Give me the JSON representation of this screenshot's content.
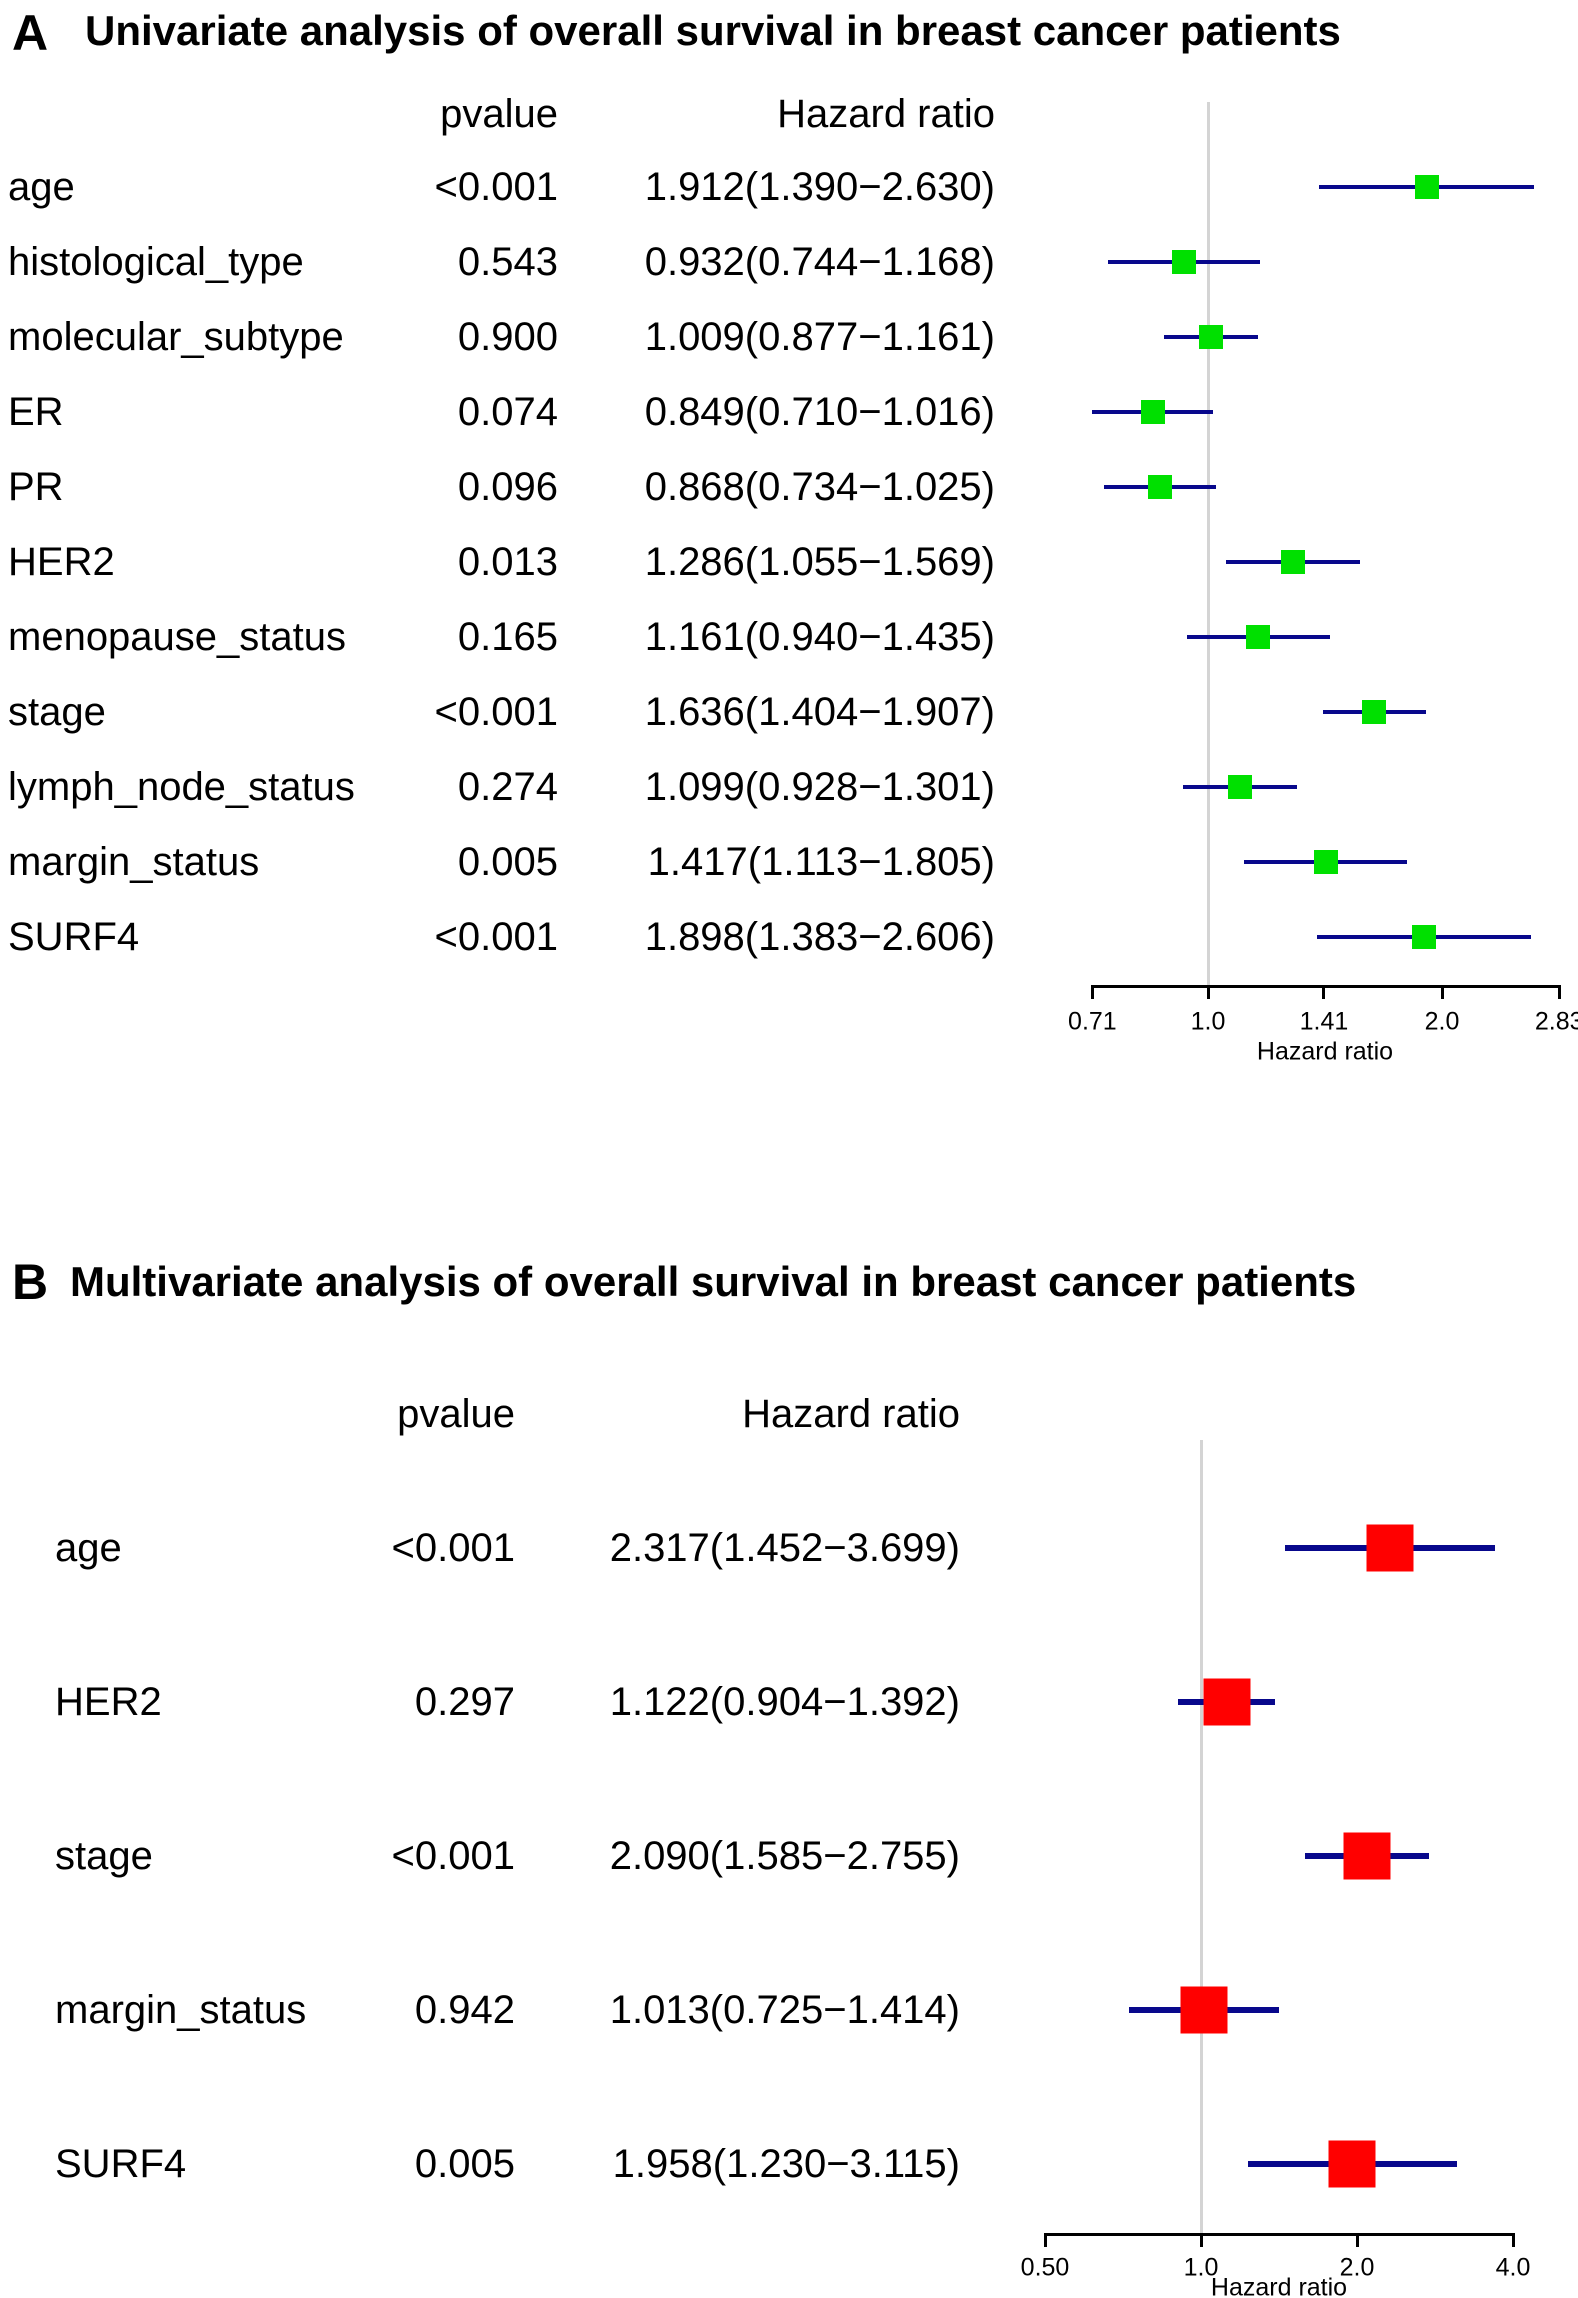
{
  "figure": {
    "background": "#ffffff",
    "ci_line_color": "#08088c",
    "reference_line_color": "#d4d4d4",
    "axis_color": "#000000"
  },
  "chart_data": [
    {
      "type": "scatter",
      "subtype": "forest-plot",
      "panel_letter": "A",
      "title": "Univariate analysis of overall survival in breast cancer patients",
      "col_pvalue_header": "pvalue",
      "col_hr_header": "Hazard ratio",
      "axis_label": "Hazard ratio",
      "axis_scale": "log2",
      "axis_range": [
        0.71,
        2.83
      ],
      "reference_value": 1.0,
      "marker_color": "#00e000",
      "marker_shape": "square",
      "ticks": [
        {
          "value": 0.71,
          "label": "0.71"
        },
        {
          "value": 1.0,
          "label": "1.0"
        },
        {
          "value": 1.41,
          "label": "1.41"
        },
        {
          "value": 2.0,
          "label": "2.0"
        },
        {
          "value": 2.83,
          "label": "2.83"
        }
      ],
      "rows": [
        {
          "label": "age",
          "pvalue": "<0.001",
          "hr_text": "1.912(1.390−2.630)",
          "hr": 1.912,
          "lo": 1.39,
          "hi": 2.63
        },
        {
          "label": "histological_type",
          "pvalue": "0.543",
          "hr_text": "0.932(0.744−1.168)",
          "hr": 0.932,
          "lo": 0.744,
          "hi": 1.168
        },
        {
          "label": "molecular_subtype",
          "pvalue": "0.900",
          "hr_text": "1.009(0.877−1.161)",
          "hr": 1.009,
          "lo": 0.877,
          "hi": 1.161
        },
        {
          "label": "ER",
          "pvalue": "0.074",
          "hr_text": "0.849(0.710−1.016)",
          "hr": 0.849,
          "lo": 0.71,
          "hi": 1.016
        },
        {
          "label": "PR",
          "pvalue": "0.096",
          "hr_text": "0.868(0.734−1.025)",
          "hr": 0.868,
          "lo": 0.734,
          "hi": 1.025
        },
        {
          "label": "HER2",
          "pvalue": "0.013",
          "hr_text": "1.286(1.055−1.569)",
          "hr": 1.286,
          "lo": 1.055,
          "hi": 1.569
        },
        {
          "label": "menopause_status",
          "pvalue": "0.165",
          "hr_text": "1.161(0.940−1.435)",
          "hr": 1.161,
          "lo": 0.94,
          "hi": 1.435
        },
        {
          "label": "stage",
          "pvalue": "<0.001",
          "hr_text": "1.636(1.404−1.907)",
          "hr": 1.636,
          "lo": 1.404,
          "hi": 1.907
        },
        {
          "label": "lymph_node_status",
          "pvalue": "0.274",
          "hr_text": "1.099(0.928−1.301)",
          "hr": 1.099,
          "lo": 0.928,
          "hi": 1.301
        },
        {
          "label": "margin_status",
          "pvalue": "0.005",
          "hr_text": "1.417(1.113−1.805)",
          "hr": 1.417,
          "lo": 1.113,
          "hi": 1.805
        },
        {
          "label": "SURF4",
          "pvalue": "<0.001",
          "hr_text": "1.898(1.383−2.606)",
          "hr": 1.898,
          "lo": 1.383,
          "hi": 2.606
        }
      ]
    },
    {
      "type": "scatter",
      "subtype": "forest-plot",
      "panel_letter": "B",
      "title": "Multivariate analysis of overall survival in breast cancer patients",
      "col_pvalue_header": "pvalue",
      "col_hr_header": "Hazard ratio",
      "axis_label": "Hazard ratio",
      "axis_scale": "log2",
      "axis_range": [
        0.5,
        4.0
      ],
      "reference_value": 1.0,
      "marker_color": "#ff0000",
      "marker_shape": "square",
      "ticks": [
        {
          "value": 0.5,
          "label": "0.50"
        },
        {
          "value": 1.0,
          "label": "1.0"
        },
        {
          "value": 2.0,
          "label": "2.0"
        },
        {
          "value": 4.0,
          "label": "4.0"
        }
      ],
      "rows": [
        {
          "label": "age",
          "pvalue": "<0.001",
          "hr_text": "2.317(1.452−3.699)",
          "hr": 2.317,
          "lo": 1.452,
          "hi": 3.699
        },
        {
          "label": "HER2",
          "pvalue": "0.297",
          "hr_text": "1.122(0.904−1.392)",
          "hr": 1.122,
          "lo": 0.904,
          "hi": 1.392
        },
        {
          "label": "stage",
          "pvalue": "<0.001",
          "hr_text": "2.090(1.585−2.755)",
          "hr": 2.09,
          "lo": 1.585,
          "hi": 2.755
        },
        {
          "label": "margin_status",
          "pvalue": "0.942",
          "hr_text": "1.013(0.725−1.414)",
          "hr": 1.013,
          "lo": 0.725,
          "hi": 1.414
        },
        {
          "label": "SURF4",
          "pvalue": "0.005",
          "hr_text": "1.958(1.230−3.115)",
          "hr": 1.958,
          "lo": 1.23,
          "hi": 3.115
        }
      ]
    }
  ]
}
